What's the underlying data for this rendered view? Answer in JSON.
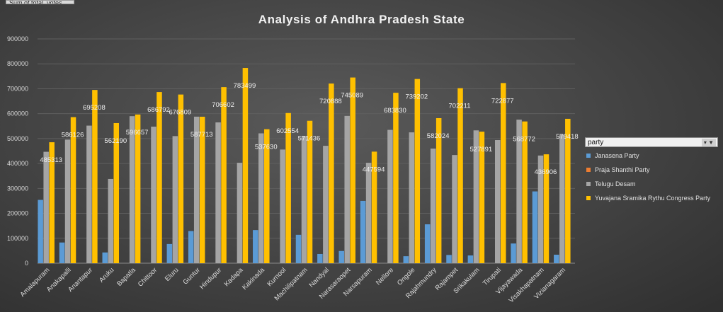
{
  "field_button_label": "Sum of total_votes",
  "filter": {
    "field": "party",
    "icon": "filter-dropdown-icon"
  },
  "chart_data": {
    "type": "bar",
    "title": "Analysis of Andhra Pradesh State",
    "categories": [
      "Amalapuram",
      "Anakapalli",
      "Anantapur",
      "Aruku",
      "Bapatla",
      "Chittoor",
      "Eluru",
      "Guntur",
      "Hindupur",
      "Kadapa",
      "Kakinada",
      "Kurnool",
      "Machilipatnam",
      "Nandyal",
      "Narasaraopet",
      "Narsapuram",
      "Nellore",
      "Ongole",
      "Rajahmundry",
      "Rajampet",
      "Srikakulam",
      "Tirupati",
      "Vijayawada",
      "Visakhapatnam",
      "Vizianagaram"
    ],
    "ylim": [
      0,
      900000
    ],
    "yticks": [
      0,
      100000,
      200000,
      300000,
      400000,
      500000,
      600000,
      700000,
      800000,
      900000
    ],
    "grid": true,
    "legend_position": "right",
    "series": [
      {
        "name": "Janasena Party",
        "color": "#5b9bd5",
        "values": [
          254000,
          83000,
          null,
          43000,
          null,
          null,
          77000,
          129000,
          null,
          null,
          133000,
          null,
          114000,
          37000,
          49000,
          250000,
          null,
          28000,
          156000,
          33000,
          31000,
          null,
          79000,
          288000,
          34000
        ]
      },
      {
        "name": "Praja Shanthi Party",
        "color": "#ed7d31",
        "values": [
          null,
          null,
          null,
          null,
          null,
          null,
          null,
          null,
          null,
          null,
          null,
          null,
          null,
          null,
          null,
          null,
          null,
          null,
          null,
          null,
          null,
          null,
          null,
          null,
          null
        ]
      },
      {
        "name": "Telugu Desam",
        "color": "#a5a5a5",
        "values": [
          447000,
          496000,
          552000,
          338000,
          590000,
          548000,
          510000,
          588000,
          565000,
          403000,
          521000,
          456000,
          510000,
          471000,
          591000,
          403000,
          535000,
          525000,
          460000,
          434000,
          533000,
          494000,
          576000,
          432000,
          516000
        ]
      },
      {
        "name": "Yuvajana Sramika Rythu Congress Party",
        "color": "#ffc000",
        "values": [
          485313,
          586126,
          695208,
          562190,
          596657,
          686792,
          676809,
          587713,
          706602,
          783499,
          537630,
          602554,
          571436,
          720888,
          745089,
          447594,
          683830,
          739202,
          582024,
          702211,
          527891,
          722877,
          568772,
          436906,
          579418
        ],
        "labels": [
          "485313",
          "586126",
          "695208",
          "562190",
          "596657",
          "686792",
          "676809",
          "587713",
          "706602",
          "783499",
          "537630",
          "602554",
          "571436",
          "720888",
          "745089",
          "447594",
          "683830",
          "739202",
          "582024",
          "702211",
          "527891",
          "722877",
          "568772",
          "436906",
          "579418"
        ]
      }
    ]
  }
}
